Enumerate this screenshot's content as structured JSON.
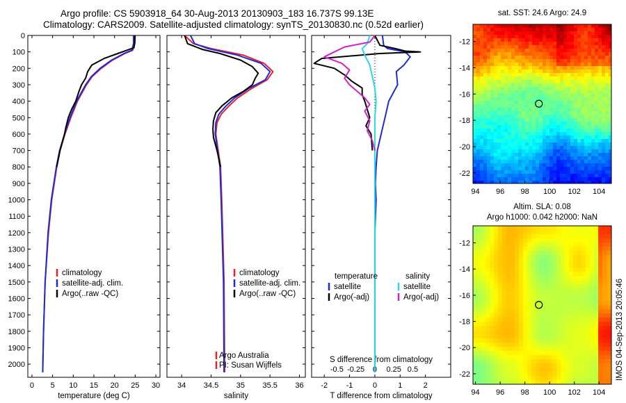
{
  "header": {
    "line1": "Argo profile: CS 5903918_64 30-Aug-2013 20130903_183 16.737S 99.13E",
    "line2": "Climatology: CARS2009. Satellite-adjusted climatology: synTS_20130830.nc (0.52d earlier)"
  },
  "colors": {
    "climatology": "#e8202a",
    "satellite": "#1c2bd8",
    "argo": "#000000",
    "sat_salinity": "#28d8e8",
    "argo_salinity": "#d020c8"
  },
  "chart_data": [
    {
      "type": "line",
      "name_id": "temperature-profile",
      "xlabel": "temperature (deg C)",
      "ylabel": "",
      "xlim": [
        -1,
        31
      ],
      "ylim": [
        0,
        2080
      ],
      "y_inverted": true,
      "xticks": [
        0,
        5,
        10,
        15,
        20,
        25,
        30
      ],
      "yticks": [
        0,
        100,
        200,
        300,
        400,
        500,
        600,
        700,
        800,
        900,
        1000,
        1100,
        1200,
        1300,
        1400,
        1500,
        1600,
        1700,
        1800,
        1900,
        2000
      ],
      "legend": [
        "climatology",
        "satellite-adj. clim.",
        "Argo(..raw -QC)"
      ],
      "series": [
        {
          "name": "climatology",
          "color_key": "climatology",
          "depth": [
            0,
            50,
            90,
            110,
            150,
            200,
            250,
            300,
            400,
            500,
            600,
            700,
            800,
            1000,
            1200,
            1500,
            1800,
            2050
          ],
          "values": [
            25.0,
            24.9,
            24.4,
            22.5,
            19.5,
            16.8,
            14.6,
            13.2,
            11.0,
            9.4,
            8.0,
            6.8,
            6.0,
            4.8,
            4.0,
            3.2,
            2.8,
            2.6
          ]
        },
        {
          "name": "satellite-adj. clim.",
          "color_key": "satellite",
          "depth": [
            0,
            50,
            90,
            110,
            150,
            200,
            250,
            300,
            400,
            500,
            600,
            700,
            800,
            1000,
            1200,
            1500,
            1800,
            2050
          ],
          "values": [
            24.6,
            24.6,
            24.2,
            22.3,
            19.3,
            16.5,
            14.4,
            13.0,
            10.8,
            9.2,
            7.9,
            6.7,
            5.9,
            4.7,
            3.9,
            3.2,
            2.8,
            2.6
          ]
        },
        {
          "name": "Argo(..raw -QC)",
          "color_key": "argo",
          "depth": [
            0,
            40,
            75,
            90,
            110,
            140,
            180,
            220,
            260,
            300,
            340,
            400,
            450,
            500,
            560,
            600,
            700,
            800
          ],
          "values": [
            24.9,
            24.9,
            24.7,
            23.0,
            20.8,
            17.5,
            14.5,
            13.5,
            13.0,
            12.0,
            11.4,
            10.6,
            9.6,
            8.8,
            8.2,
            7.9,
            6.8,
            6.0
          ]
        }
      ]
    },
    {
      "type": "line",
      "name_id": "salinity-profile",
      "xlabel": "salinity",
      "ylabel": "",
      "xlim": [
        33.75,
        36.1
      ],
      "ylim": [
        0,
        2080
      ],
      "y_inverted": true,
      "xticks": [
        34,
        34.5,
        35,
        35.5,
        36
      ],
      "legend": [
        "climatology",
        "satellite-adj. clim.",
        "Argo(..raw -QC)"
      ],
      "series": [
        {
          "name": "climatology",
          "color_key": "climatology",
          "depth": [
            0,
            50,
            80,
            120,
            170,
            220,
            270,
            320,
            380,
            430,
            480,
            530,
            600,
            700,
            800,
            1000,
            1500,
            2050
          ],
          "values": [
            34.05,
            34.2,
            34.5,
            35.05,
            35.4,
            35.55,
            35.45,
            35.2,
            34.95,
            34.8,
            34.67,
            34.6,
            34.58,
            34.62,
            34.66,
            34.68,
            34.72,
            34.73
          ]
        },
        {
          "name": "satellite-adj. clim.",
          "color_key": "satellite",
          "depth": [
            0,
            50,
            80,
            120,
            170,
            220,
            270,
            320,
            380,
            430,
            480,
            530,
            600,
            700,
            800,
            1000,
            1500,
            2050
          ],
          "values": [
            34.15,
            34.22,
            34.45,
            34.95,
            35.35,
            35.5,
            35.42,
            35.15,
            34.9,
            34.75,
            34.63,
            34.58,
            34.57,
            34.61,
            34.65,
            34.67,
            34.71,
            34.72
          ]
        },
        {
          "name": "Argo(..raw -QC)",
          "color_key": "argo",
          "depth": [
            0,
            50,
            85,
            110,
            150,
            190,
            230,
            260,
            300,
            340,
            380,
            430,
            470,
            520,
            570,
            620,
            700,
            800
          ],
          "values": [
            34.05,
            34.1,
            34.35,
            34.65,
            35.0,
            35.2,
            35.3,
            35.25,
            35.2,
            35.05,
            34.85,
            34.68,
            34.58,
            34.54,
            34.53,
            34.54,
            34.6,
            34.66
          ]
        }
      ],
      "annotation": [
        "Argo Australia",
        "PI: Susan Wijffels"
      ]
    },
    {
      "type": "line",
      "name_id": "difference-profile",
      "xlabel": "T difference from climatology",
      "top_xlabel": "S difference from climatology",
      "xlim": [
        -2.5,
        3.0
      ],
      "ylim": [
        0,
        2080
      ],
      "y_inverted": true,
      "xticks": [
        -2,
        -1,
        0,
        1,
        2
      ],
      "top_xticks": [
        "-0.5",
        "-0.25",
        "0",
        "0.25",
        "0.5"
      ],
      "top_xtick_positions": [
        -1.5,
        -0.75,
        0,
        0.75,
        1.5
      ],
      "legend_titles": [
        "temperature",
        "salinity"
      ],
      "legend": [
        "satellite",
        "Argo(-adj)",
        "satellite",
        "Argo(-adj)"
      ],
      "series": [
        {
          "name": "satellite",
          "group": "temperature",
          "color_key": "satellite",
          "depth": [
            0,
            60,
            80,
            100,
            130,
            180,
            220,
            300,
            400,
            500,
            600,
            700,
            800,
            900,
            1000,
            1200,
            1500,
            2050
          ],
          "values": [
            0.3,
            0.35,
            0.5,
            1.2,
            1.4,
            1.15,
            0.85,
            0.9,
            0.55,
            0.4,
            0.25,
            0.1,
            0.05,
            0.02,
            0.05,
            0.0,
            0.0,
            0.0
          ]
        },
        {
          "name": "Argo(-adj)",
          "group": "temperature",
          "color_key": "argo",
          "depth": [
            0,
            60,
            80,
            95,
            100,
            110,
            140,
            170,
            200,
            240,
            280,
            320,
            360,
            400,
            450,
            500,
            550,
            600,
            700
          ],
          "values": [
            0.0,
            0.2,
            0.8,
            1.2,
            1.8,
            0.2,
            -2.1,
            -2.4,
            -1.6,
            -1.2,
            -0.9,
            -0.5,
            -0.5,
            -0.4,
            -0.3,
            -0.2,
            -0.35,
            -0.15,
            -0.1
          ]
        },
        {
          "name": "satellite",
          "group": "salinity",
          "color_key": "sat_salinity",
          "depth": [
            0,
            50,
            80,
            120,
            180,
            250,
            320,
            400,
            500,
            600,
            700,
            800,
            1000,
            1500,
            2050
          ],
          "values": [
            -0.2,
            -0.3,
            -0.5,
            -0.4,
            -0.2,
            -0.1,
            0.0,
            0.05,
            0.0,
            0.0,
            0.0,
            0.0,
            0.0,
            0.0,
            0.0
          ]
        },
        {
          "name": "Argo(-adj)",
          "group": "salinity",
          "color_key": "argo_salinity",
          "depth": [
            0,
            40,
            70,
            100,
            130,
            170,
            210,
            260,
            300,
            340,
            380,
            420,
            460,
            520,
            580,
            640,
            700
          ],
          "values": [
            0.0,
            -0.2,
            -1.2,
            -1.6,
            -2.0,
            -1.3,
            -1.0,
            -1.2,
            -1.0,
            -0.7,
            -0.4,
            -0.2,
            -0.4,
            -0.2,
            -0.3,
            -0.1,
            0.0
          ]
        }
      ]
    },
    {
      "type": "heatmap",
      "name_id": "sst-map",
      "title": "sat. SST: 24.6 Argo: 24.9",
      "xlim": [
        93.8,
        105.0
      ],
      "ylim": [
        -22.8,
        -10.7
      ],
      "xticks": [
        94,
        96,
        98,
        100,
        102,
        104
      ],
      "yticks": [
        -12,
        -14,
        -16,
        -18,
        -20,
        -22
      ],
      "marker": {
        "lon": 99.13,
        "lat": -16.737
      }
    },
    {
      "type": "heatmap",
      "name_id": "sla-map",
      "title": "Altim. SLA: 0.08",
      "subtitle": "Argo h1000: 0.042 h2000: NaN",
      "xlim": [
        93.8,
        105.0
      ],
      "ylim": [
        -22.8,
        -10.7
      ],
      "xticks": [
        94,
        96,
        98,
        100,
        102,
        104
      ],
      "yticks": [
        -12,
        -14,
        -16,
        -18,
        -20,
        -22
      ],
      "marker": {
        "lon": 99.13,
        "lat": -16.737
      }
    }
  ],
  "footer": {
    "imos_stamp": "IMOS 04-Sep-2013 20:05:46"
  }
}
